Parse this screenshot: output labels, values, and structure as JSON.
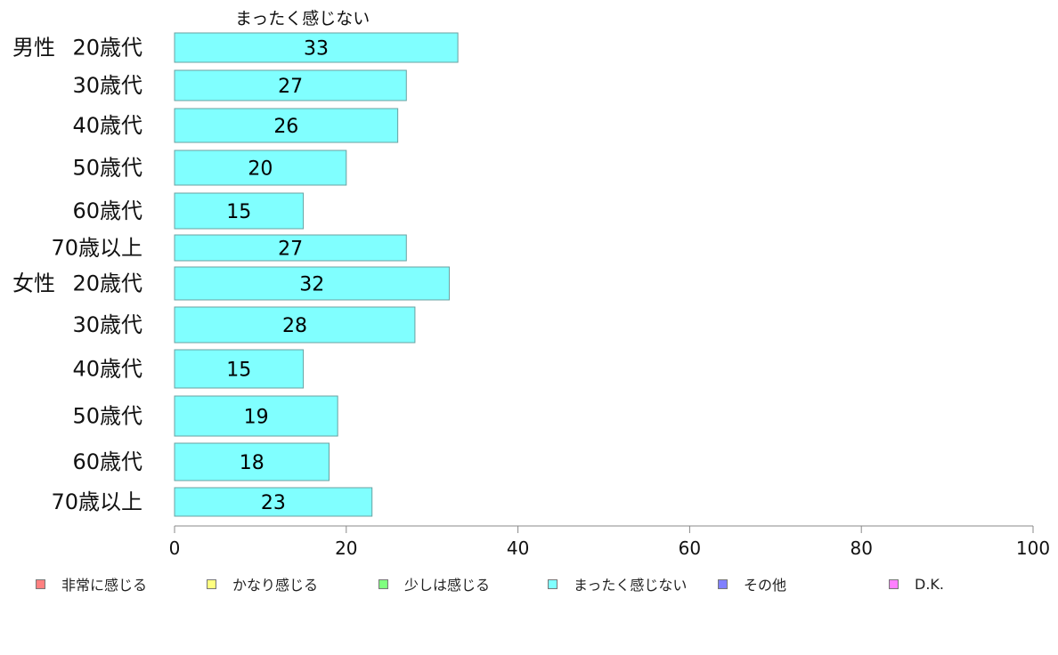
{
  "chart_data": {
    "type": "bar",
    "orientation": "horizontal",
    "header": "まったく感じない",
    "group_labels": [
      "男性",
      "女性"
    ],
    "categories": [
      "20歳代",
      "30歳代",
      "40歳代",
      "50歳代",
      "60歳代",
      "70歳以上",
      "20歳代",
      "30歳代",
      "40歳代",
      "50歳代",
      "60歳代",
      "70歳以上"
    ],
    "values": [
      33,
      27,
      26,
      20,
      15,
      27,
      32,
      28,
      15,
      19,
      18,
      23
    ],
    "xlim": [
      0,
      100
    ],
    "xticks": [
      "0",
      "20",
      "40",
      "60",
      "80",
      "100"
    ],
    "bar_color": "#80ffff",
    "bar_stroke": "#6aa0a0",
    "legend": [
      {
        "label": "非常に感じる",
        "color": "#ff8080"
      },
      {
        "label": "かなり感じる",
        "color": "#ffff80"
      },
      {
        "label": "少しは感じる",
        "color": "#80ff80"
      },
      {
        "label": "まったく感じない",
        "color": "#80ffff"
      },
      {
        "label": "その他",
        "color": "#8080ff"
      },
      {
        "label": "D.K.",
        "color": "#ff80ff"
      }
    ],
    "legend_placement": "bottom",
    "grid": false
  }
}
